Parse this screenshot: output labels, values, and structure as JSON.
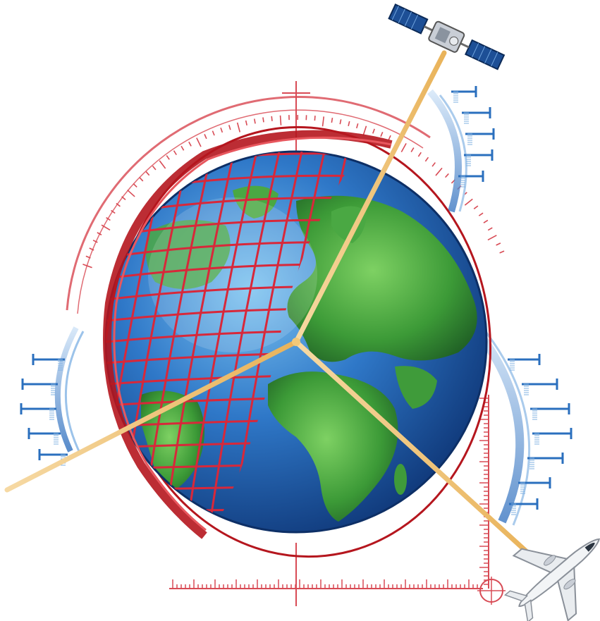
{
  "illustration": {
    "subject": "globe-navigation-illustration",
    "colors": {
      "background": "#ffffff",
      "ocean_light": "#5aa8e6",
      "ocean_dark": "#0d3f86",
      "land_light": "#55b34a",
      "land_dark": "#1f6b26",
      "grid_red": "#c21f26",
      "scale_pink": "#de5a63",
      "signal_beam": "#f2c878",
      "accent_blue": "#3a79c8"
    }
  }
}
